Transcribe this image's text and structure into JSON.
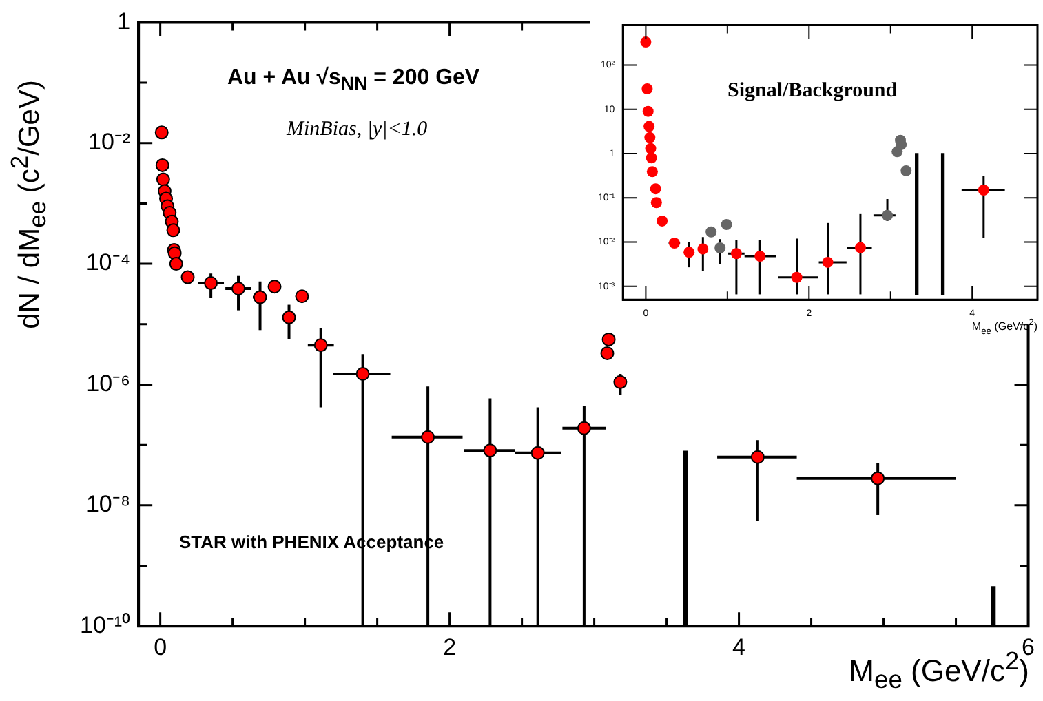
{
  "chart_data": [
    {
      "type": "scatter",
      "xlabel": "M$_{ee}$ (GeV/c$^{2}$)",
      "ylabel": "dN / dM$_{ee}$ (c$^{2}$/GeV)",
      "log": "y",
      "grid": false,
      "legend": false,
      "marker": "circle",
      "xlim": [
        -0.15,
        6
      ],
      "ylim": [
        1e-10,
        1
      ],
      "xticks": [
        0,
        {
          "value": 0.5,
          "label": null
        },
        {
          "value": 1,
          "label": null
        },
        {
          "value": 1.5,
          "label": null
        },
        2,
        {
          "value": 2.5,
          "label": null
        },
        {
          "value": 3,
          "label": null
        },
        {
          "value": 3.5,
          "label": null
        },
        4,
        {
          "value": 4.5,
          "label": null
        },
        {
          "value": 5,
          "label": null
        },
        {
          "value": 5.5,
          "label": null
        },
        6
      ],
      "yticks": [
        {
          "value": 1e-10,
          "label": "10⁻¹⁰"
        },
        {
          "value": 1e-09,
          "label": null
        },
        {
          "value": 1e-08,
          "label": "10⁻⁸"
        },
        {
          "value": 1e-07,
          "label": null
        },
        {
          "value": 1e-06,
          "label": "10⁻⁶"
        },
        {
          "value": 1e-05,
          "label": null
        },
        {
          "value": 0.0001,
          "label": "10⁻⁴"
        },
        {
          "value": 0.001,
          "label": null
        },
        {
          "value": 0.01,
          "label": "10⁻²"
        },
        {
          "value": 0.1,
          "label": null
        },
        {
          "value": 1,
          "label": "1"
        }
      ],
      "annotations": [
        "Au + Au √s$_{NN}$ = 200 GeV",
        "MinBias, |y|<1.0",
        "STAR with PHENIX Acceptance"
      ],
      "series": [
        {
          "color": "#ff0000",
          "x": [
            0.01,
            0.015,
            0.02,
            0.03,
            0.04,
            0.05,
            0.065,
            0.08,
            0.09,
            0.095,
            0.1,
            0.11,
            0.19,
            0.35,
            0.54,
            0.69,
            0.79,
            0.89,
            0.98,
            1.11,
            1.4,
            1.85,
            2.28,
            2.61,
            2.93,
            3.09,
            3.1,
            3.18,
            4.13,
            4.96
          ],
          "values": [
            0.015,
            0.0043,
            0.0025,
            0.0016,
            0.0012,
            0.0009,
            0.0007,
            0.0005,
            0.00036,
            0.00017,
            0.00015,
            0.0001,
            6e-05,
            4.8e-05,
            3.9e-05,
            2.8e-05,
            4.2e-05,
            1.3e-05,
            2.9e-05,
            4.5e-06,
            1.5e-06,
            1.35e-07,
            8.1e-08,
            7.4e-08,
            1.9e-07,
            3.3e-06,
            5.6e-06,
            1.1e-06,
            6.3e-08,
            2.8e-08
          ],
          "errors": [
            null,
            null,
            null,
            null,
            null,
            null,
            null,
            null,
            null,
            null,
            null,
            null,
            null,
            [
              2.7e-05,
              6.9e-05
            ],
            [
              1.7e-05,
              6.3e-05
            ],
            [
              8e-06,
              5.1e-05
            ],
            null,
            [
              5.6e-06,
              2.1e-05
            ],
            null,
            [
              4.2e-07,
              8.7e-06
            ],
            [
              1e-10,
              3.2e-06
            ],
            [
              1e-10,
              9.3e-07
            ],
            [
              1e-10,
              5.9e-07
            ],
            [
              1e-10,
              4.2e-07
            ],
            [
              1e-10,
              4.4e-07
            ],
            null,
            null,
            [
              6.8e-07,
              1.5e-06
            ],
            [
              5.5e-09,
              1.2e-07
            ],
            [
              6.9e-09,
              5e-08
            ]
          ],
          "xerrors": [
            null,
            null,
            null,
            null,
            null,
            null,
            null,
            null,
            null,
            null,
            null,
            null,
            0.02,
            [
              0.26,
              0.44
            ],
            [
              0.45,
              0.63
            ],
            [
              0.64,
              0.74
            ],
            null,
            [
              0.85,
              0.93
            ],
            null,
            [
              1.02,
              1.2
            ],
            [
              1.195,
              1.59
            ],
            [
              1.6,
              2.09
            ],
            [
              2.1,
              2.45
            ],
            [
              2.45,
              2.77
            ],
            [
              2.78,
              3.08
            ],
            null,
            null,
            null,
            [
              3.85,
              4.4
            ],
            [
              4.4,
              5.5
            ]
          ]
        },
        {
          "type": "bar",
          "color": "#000000",
          "x": [
            3.63,
            5.76
          ],
          "base": [
            1e-10,
            1e-10
          ],
          "values": [
            7.89e-08,
            3.5e-10
          ]
        }
      ]
    },
    {
      "type": "scatter",
      "title": "Signal/Background",
      "xlabel": "M$_{ee}$ (GeV/c$^{2}$)",
      "log": "y",
      "grid": false,
      "legend": false,
      "marker": "circle",
      "xlim": [
        -0.28,
        4.8
      ],
      "ylim": [
        0.0005,
        800
      ],
      "xticks": [
        0,
        {
          "value": 1,
          "label": null
        },
        2,
        {
          "value": 3,
          "label": null
        },
        4
      ],
      "yticks": [
        {
          "value": 0.001,
          "label": "10⁻³"
        },
        {
          "value": 0.01,
          "label": "10⁻²"
        },
        {
          "value": 0.1,
          "label": "10⁻¹"
        },
        {
          "value": 1,
          "label": "1"
        },
        {
          "value": 10,
          "label": "10"
        },
        {
          "value": 100,
          "label": "10²"
        }
      ],
      "series": [
        {
          "color": "#ff0000",
          "x": [
            0,
            0.017,
            0.028,
            0.04,
            0.05,
            0.06,
            0.07,
            0.08,
            0.12,
            0.13,
            0.2,
            0.35,
            0.53,
            0.7,
            1.11,
            1.4,
            1.85,
            2.23,
            2.63,
            4.14
          ],
          "values": [
            330,
            29,
            9,
            4.1,
            2.3,
            1.3,
            0.8,
            0.39,
            0.16,
            0.078,
            0.03,
            0.0095,
            0.0059,
            0.007,
            0.0055,
            0.0048,
            0.0016,
            0.0035,
            0.0075,
            0.15
          ],
          "errors": [
            null,
            null,
            null,
            null,
            null,
            null,
            null,
            null,
            null,
            null,
            null,
            null,
            [
              0.0027,
              0.01
            ],
            [
              0.0022,
              0.013
            ],
            [
              0.00066,
              0.011
            ],
            [
              0.00066,
              0.011
            ],
            [
              0.00066,
              0.012
            ],
            [
              0.00066,
              0.027
            ],
            [
              0.00066,
              0.043
            ],
            [
              0.0126,
              0.31
            ]
          ],
          "xerrors": [
            null,
            null,
            null,
            null,
            null,
            null,
            null,
            null,
            null,
            null,
            null,
            0.07,
            null,
            null,
            0.1,
            [
              1.21,
              1.6
            ],
            [
              1.62,
              2.11
            ],
            [
              2.12,
              2.46
            ],
            [
              2.47,
              2.77
            ],
            [
              3.87,
              4.4
            ]
          ]
        },
        {
          "color": "#666666",
          "x": [
            0.8,
            0.91,
            0.99,
            2.96,
            3.08,
            3.12,
            3.13,
            3.19
          ],
          "values": [
            0.017,
            0.0074,
            0.025,
            0.04,
            1.1,
            2.0,
            1.6,
            0.41
          ],
          "errors": [
            null,
            [
              0.0032,
              0.0117
            ],
            null,
            [
              0.03,
              0.094
            ],
            null,
            null,
            null,
            null
          ],
          "xerrors": [
            null,
            null,
            null,
            [
              2.79,
              3.06
            ],
            null,
            null,
            null,
            null
          ]
        },
        {
          "type": "bar",
          "color": "#000000",
          "x": [
            3.32,
            3.64
          ],
          "base": [
            0.00066,
            0.00066
          ],
          "values": [
            1.0,
            1.0
          ]
        }
      ]
    }
  ]
}
